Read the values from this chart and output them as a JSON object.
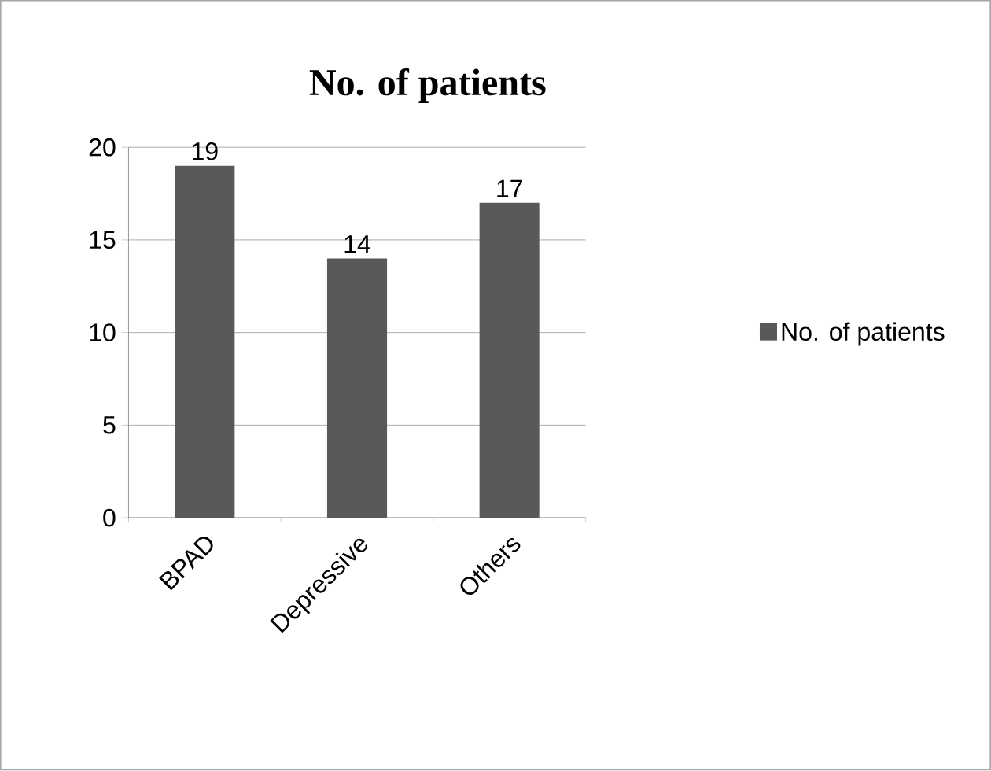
{
  "chart_data": {
    "type": "bar",
    "title": "No. of patients",
    "categories": [
      "BPAD",
      "Depressive",
      "Others"
    ],
    "series": [
      {
        "name": "No. of patients",
        "color": "#595959",
        "values": [
          19,
          14,
          17
        ]
      }
    ],
    "ylim": [
      0,
      20
    ],
    "yticks": [
      0,
      5,
      10,
      15,
      20
    ],
    "grid": "y",
    "legend": "right",
    "data_labels": true
  }
}
